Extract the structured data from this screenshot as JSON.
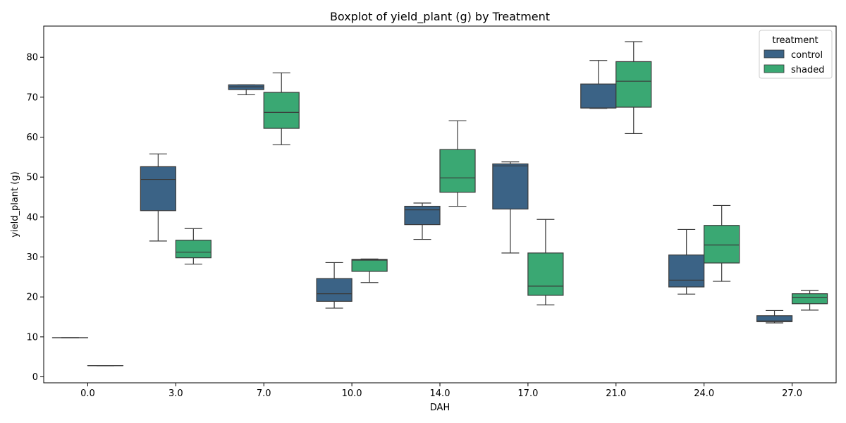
{
  "chart_data": {
    "type": "box",
    "title": "Boxplot of yield_plant (g) by Treatment",
    "xlabel": "DAH",
    "ylabel": "yield_plant (g)",
    "categories": [
      "0.0",
      "3.0",
      "7.0",
      "10.0",
      "14.0",
      "17.0",
      "21.0",
      "24.0",
      "27.0"
    ],
    "ylim": [
      -1.5,
      87.8
    ],
    "yticks": [
      0,
      10,
      20,
      30,
      40,
      50,
      60,
      70,
      80
    ],
    "legend": {
      "title": "treatment",
      "position": "top-right"
    },
    "grid": false,
    "series": [
      {
        "name": "control",
        "color": "#3b6386",
        "boxes": [
          {
            "whislo": 9.8,
            "q1": 9.8,
            "med": 9.8,
            "q3": 9.8,
            "whishi": 9.8
          },
          {
            "whislo": 34.0,
            "q1": 41.6,
            "med": 49.4,
            "q3": 52.6,
            "whishi": 55.8
          },
          {
            "whislo": 70.6,
            "q1": 71.9,
            "med": 72.6,
            "q3": 73.1,
            "whishi": 73.1
          },
          {
            "whislo": 17.2,
            "q1": 18.9,
            "med": 20.8,
            "q3": 24.6,
            "whishi": 28.6
          },
          {
            "whislo": 34.4,
            "q1": 38.1,
            "med": 41.8,
            "q3": 42.7,
            "whishi": 43.5
          },
          {
            "whislo": 31.0,
            "q1": 42.0,
            "med": 52.8,
            "q3": 53.3,
            "whishi": 53.8
          },
          {
            "whislo": 67.2,
            "q1": 67.3,
            "med": 67.3,
            "q3": 73.3,
            "whishi": 79.2
          },
          {
            "whislo": 20.7,
            "q1": 22.5,
            "med": 24.2,
            "q3": 30.5,
            "whishi": 36.9
          },
          {
            "whislo": 13.5,
            "q1": 13.8,
            "med": 14.0,
            "q3": 15.3,
            "whishi": 16.6
          }
        ]
      },
      {
        "name": "shaded",
        "color": "#3aa873",
        "boxes": [
          {
            "whislo": 2.8,
            "q1": 2.8,
            "med": 2.8,
            "q3": 2.8,
            "whishi": 2.8
          },
          {
            "whislo": 28.2,
            "q1": 29.8,
            "med": 31.2,
            "q3": 34.2,
            "whishi": 37.1
          },
          {
            "whislo": 58.1,
            "q1": 62.2,
            "med": 66.2,
            "q3": 71.2,
            "whishi": 76.1
          },
          {
            "whislo": 23.6,
            "q1": 26.4,
            "med": 29.2,
            "q3": 29.4,
            "whishi": 29.5
          },
          {
            "whislo": 42.7,
            "q1": 46.2,
            "med": 49.8,
            "q3": 56.9,
            "whishi": 64.1
          },
          {
            "whislo": 18.0,
            "q1": 20.4,
            "med": 22.7,
            "q3": 31.0,
            "whishi": 39.4
          },
          {
            "whislo": 60.9,
            "q1": 67.5,
            "med": 74.0,
            "q3": 78.9,
            "whishi": 83.9
          },
          {
            "whislo": 23.9,
            "q1": 28.5,
            "med": 33.0,
            "q3": 37.9,
            "whishi": 42.9
          },
          {
            "whislo": 16.7,
            "q1": 18.3,
            "med": 19.9,
            "q3": 20.8,
            "whishi": 21.6
          }
        ]
      }
    ]
  }
}
